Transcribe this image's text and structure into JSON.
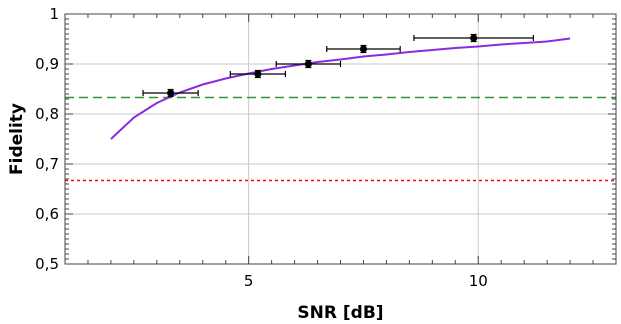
{
  "chart_data": {
    "type": "scatter",
    "title": "",
    "xlabel": "SNR [dB]",
    "ylabel": "Fidelity",
    "xlim": [
      1,
      13
    ],
    "ylim": [
      0.5,
      1.0
    ],
    "grid": true,
    "x_ticks": [
      {
        "value": 5,
        "label": "5"
      },
      {
        "value": 10,
        "label": "10"
      }
    ],
    "y_ticks": [
      {
        "value": 0.5,
        "label": "0,5"
      },
      {
        "value": 0.6,
        "label": "0,6"
      },
      {
        "value": 0.7,
        "label": "0,7"
      },
      {
        "value": 0.8,
        "label": "0,8"
      },
      {
        "value": 0.9,
        "label": "0,9"
      },
      {
        "value": 1.0,
        "label": "1"
      }
    ],
    "points": [
      {
        "x": 3.3,
        "y": 0.842,
        "xerr": 0.6,
        "yerr": 0.007
      },
      {
        "x": 5.2,
        "y": 0.88,
        "xerr": 0.6,
        "yerr": 0.007
      },
      {
        "x": 6.3,
        "y": 0.9,
        "xerr": 0.7,
        "yerr": 0.007
      },
      {
        "x": 7.5,
        "y": 0.93,
        "xerr": 0.8,
        "yerr": 0.007
      },
      {
        "x": 9.9,
        "y": 0.952,
        "xerr": 1.3,
        "yerr": 0.007
      }
    ],
    "fit_curve": {
      "color": "#8a2be2",
      "x": [
        2.0,
        2.5,
        3.0,
        3.5,
        4.0,
        4.5,
        5.0,
        5.5,
        6.0,
        6.5,
        7.0,
        7.5,
        8.0,
        8.5,
        9.0,
        9.5,
        10.0,
        10.5,
        11.0,
        11.5,
        12.0
      ],
      "y": [
        0.75,
        0.793,
        0.822,
        0.843,
        0.859,
        0.871,
        0.881,
        0.89,
        0.897,
        0.904,
        0.909,
        0.915,
        0.919,
        0.924,
        0.928,
        0.932,
        0.935,
        0.939,
        0.942,
        0.945,
        0.951
      ]
    },
    "hlines": [
      {
        "y": 0.833,
        "color": "#2e9a2e",
        "style": "dashed"
      },
      {
        "y": 0.667,
        "color": "#ff0000",
        "style": "dotted"
      }
    ]
  }
}
